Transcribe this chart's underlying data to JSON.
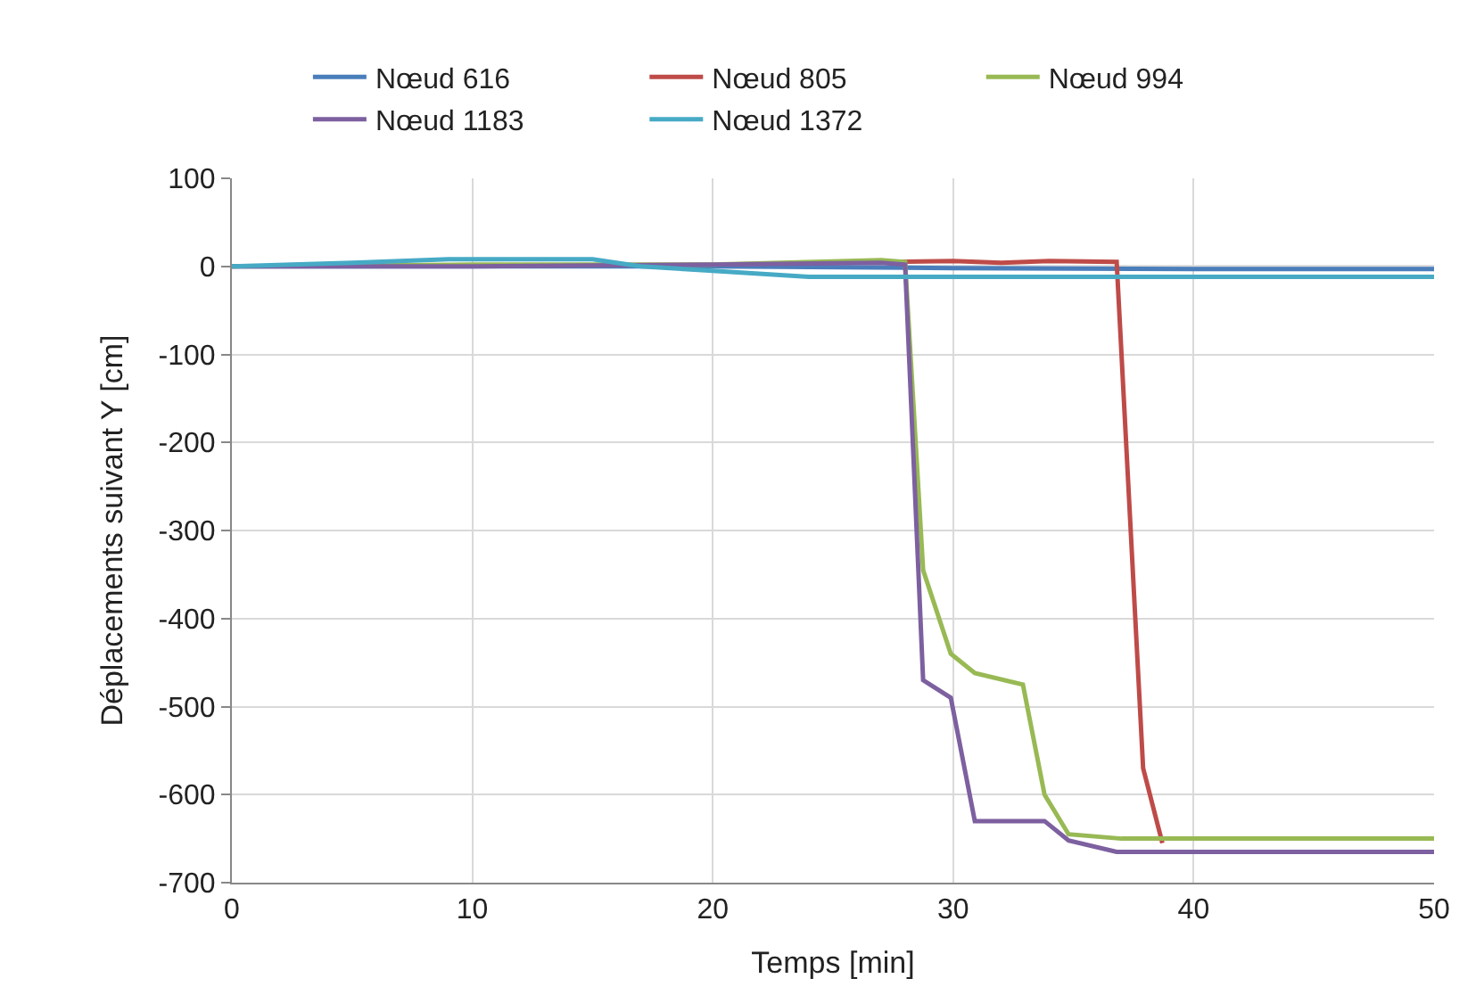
{
  "chart_data": {
    "type": "line",
    "xlabel": "Temps [min]",
    "ylabel": "Déplacements suivant Y [cm]",
    "xlim": [
      0,
      50
    ],
    "xticks": [
      0,
      10,
      20,
      30,
      40,
      50
    ],
    "ylim": [
      -700,
      100
    ],
    "yticks": [
      -700,
      -600,
      -500,
      -400,
      -300,
      -200,
      -100,
      0,
      100
    ],
    "grid": true,
    "legend": "top",
    "marker": "none",
    "line_style": "solid",
    "series": [
      {
        "name": "Nœud 616",
        "color": "#4a7ebb",
        "x": [
          0,
          10,
          20,
          30,
          40,
          50
        ],
        "values": [
          0,
          0,
          0,
          -2,
          -3,
          -3
        ]
      },
      {
        "name": "Nœud 805",
        "color": "#be4b48",
        "x": [
          27,
          30,
          32,
          34,
          36.8,
          37.9,
          38.7
        ],
        "values": [
          5,
          6,
          4,
          6,
          5,
          -570,
          -655
        ]
      },
      {
        "name": "Nœud 994",
        "color": "#98b954",
        "x": [
          0,
          10,
          20,
          27,
          28,
          28.75,
          29.9,
          30.9,
          32.9,
          33.8,
          34.8,
          37,
          50
        ],
        "values": [
          0,
          2,
          2,
          7,
          5,
          -345,
          -440,
          -462,
          -475,
          -600,
          -645,
          -650,
          -650
        ]
      },
      {
        "name": "Nœud 1183",
        "color": "#7d60a0",
        "x": [
          0,
          10,
          20,
          27,
          28,
          28.75,
          29.9,
          30.9,
          33.8,
          34.8,
          36.8,
          50
        ],
        "values": [
          0,
          0,
          2,
          4,
          2,
          -470,
          -490,
          -630,
          -630,
          -652,
          -665,
          -665
        ]
      },
      {
        "name": "Nœud 1372",
        "color": "#46aac5",
        "x": [
          0,
          5,
          9,
          15,
          17,
          20,
          24,
          28,
          50
        ],
        "values": [
          0,
          4,
          8,
          8,
          0,
          -5,
          -12,
          -12,
          -12
        ]
      }
    ]
  }
}
